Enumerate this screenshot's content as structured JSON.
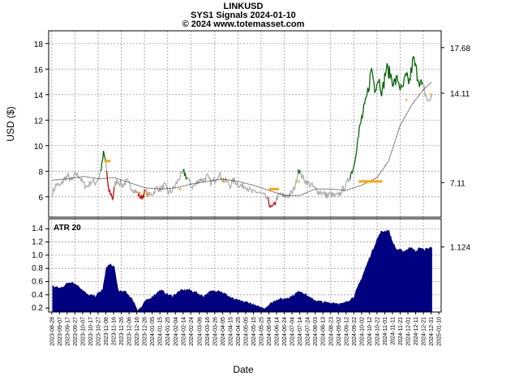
{
  "titles": [
    "LINKUSD",
    "SYS1  Signals 2024-01-10",
    "© 2024 www.totemasset.com"
  ],
  "chart_data": [
    {
      "type": "line",
      "panel": "price",
      "ylabel": "USD ($)",
      "ylim": [
        4.4,
        19.0
      ],
      "yticks": [
        6,
        8,
        10,
        12,
        14,
        16,
        18
      ],
      "right_labels": [
        "17.68",
        "14.11",
        "7.11"
      ],
      "grid": true,
      "price_points": [
        [
          "2023-08-29",
          6.3
        ],
        [
          "2023-09-03",
          7.0
        ],
        [
          "2023-09-08",
          6.8
        ],
        [
          "2023-09-13",
          7.4
        ],
        [
          "2023-09-18",
          7.6
        ],
        [
          "2023-09-23",
          7.2
        ],
        [
          "2023-09-28",
          7.8
        ],
        [
          "2023-10-03",
          7.6
        ],
        [
          "2023-10-08",
          7.0
        ],
        [
          "2023-10-13",
          6.8
        ],
        [
          "2023-10-18",
          7.2
        ],
        [
          "2023-10-23",
          7.1
        ],
        [
          "2023-10-28",
          7.5
        ],
        [
          "2023-11-01",
          8.5
        ],
        [
          "2023-11-03",
          9.4
        ],
        [
          "2023-11-06",
          8.7
        ],
        [
          "2023-11-09",
          6.6
        ],
        [
          "2023-11-12",
          6.3
        ],
        [
          "2023-11-15",
          5.9
        ],
        [
          "2023-11-18",
          7.0
        ],
        [
          "2023-11-21",
          7.3
        ],
        [
          "2023-11-24",
          7.1
        ],
        [
          "2023-11-28",
          6.9
        ],
        [
          "2023-12-03",
          7.2
        ],
        [
          "2023-12-08",
          6.8
        ],
        [
          "2023-12-13",
          6.5
        ],
        [
          "2023-12-18",
          6.2
        ],
        [
          "2023-12-22",
          5.9
        ],
        [
          "2023-12-27",
          6.4
        ],
        [
          "2024-01-01",
          6.1
        ],
        [
          "2024-01-06",
          6.3
        ],
        [
          "2024-01-11",
          6.7
        ],
        [
          "2024-01-16",
          6.6
        ],
        [
          "2024-01-21",
          6.9
        ],
        [
          "2024-01-26",
          6.3
        ],
        [
          "2024-01-31",
          6.5
        ],
        [
          "2024-02-05",
          7.0
        ],
        [
          "2024-02-10",
          7.6
        ],
        [
          "2024-02-15",
          7.9
        ],
        [
          "2024-02-20",
          7.4
        ],
        [
          "2024-02-25",
          6.8
        ],
        [
          "2024-03-01",
          6.9
        ],
        [
          "2024-03-06",
          7.4
        ],
        [
          "2024-03-11",
          7.3
        ],
        [
          "2024-03-16",
          7.6
        ],
        [
          "2024-03-21",
          7.1
        ],
        [
          "2024-03-26",
          7.3
        ],
        [
          "2024-03-31",
          7.8
        ],
        [
          "2024-04-05",
          7.4
        ],
        [
          "2024-04-10",
          7.2
        ],
        [
          "2024-04-15",
          6.9
        ],
        [
          "2024-04-20",
          7.3
        ],
        [
          "2024-04-25",
          7.0
        ],
        [
          "2024-04-30",
          6.8
        ],
        [
          "2024-05-05",
          6.9
        ],
        [
          "2024-05-10",
          6.5
        ],
        [
          "2024-05-15",
          6.3
        ],
        [
          "2024-05-20",
          6.4
        ],
        [
          "2024-05-25",
          6.2
        ],
        [
          "2024-05-30",
          6.0
        ],
        [
          "2024-06-04",
          5.6
        ],
        [
          "2024-06-07",
          5.1
        ],
        [
          "2024-06-10",
          5.2
        ],
        [
          "2024-06-14",
          5.9
        ],
        [
          "2024-06-19",
          6.2
        ],
        [
          "2024-06-24",
          6.0
        ],
        [
          "2024-06-29",
          6.1
        ],
        [
          "2024-07-04",
          6.3
        ],
        [
          "2024-07-09",
          7.0
        ],
        [
          "2024-07-12",
          8.2
        ],
        [
          "2024-07-15",
          7.8
        ],
        [
          "2024-07-19",
          7.4
        ],
        [
          "2024-07-24",
          7.1
        ],
        [
          "2024-07-29",
          6.9
        ],
        [
          "2024-08-03",
          6.6
        ],
        [
          "2024-08-08",
          6.4
        ],
        [
          "2024-08-13",
          6.3
        ],
        [
          "2024-08-18",
          6.1
        ],
        [
          "2024-08-23",
          6.2
        ],
        [
          "2024-08-28",
          6.0
        ],
        [
          "2024-09-02",
          6.1
        ],
        [
          "2024-09-07",
          6.5
        ],
        [
          "2024-09-12",
          6.9
        ],
        [
          "2024-09-17",
          7.6
        ],
        [
          "2024-09-22",
          8.4
        ],
        [
          "2024-09-27",
          10.4
        ],
        [
          "2024-10-02",
          12.1
        ],
        [
          "2024-10-07",
          13.2
        ],
        [
          "2024-10-12",
          14.9
        ],
        [
          "2024-10-15",
          16.1
        ],
        [
          "2024-10-19",
          14.6
        ],
        [
          "2024-10-24",
          15.3
        ],
        [
          "2024-10-29",
          14.2
        ],
        [
          "2024-11-03",
          16.1
        ],
        [
          "2024-11-08",
          15.6
        ],
        [
          "2024-11-13",
          14.9
        ],
        [
          "2024-11-18",
          15.2
        ],
        [
          "2024-11-23",
          14.2
        ],
        [
          "2024-11-28",
          15.3
        ],
        [
          "2024-12-03",
          15.0
        ],
        [
          "2024-12-08",
          16.8
        ],
        [
          "2024-12-13",
          15.6
        ],
        [
          "2024-12-18",
          14.8
        ],
        [
          "2024-12-23",
          14.2
        ],
        [
          "2024-12-28",
          13.3
        ],
        [
          "2025-01-01",
          14.1
        ]
      ],
      "signal_runs": [
        {
          "color": "#006400",
          "from": "2023-10-30",
          "to": "2023-11-06"
        },
        {
          "color": "#cc0000",
          "from": "2023-11-07",
          "to": "2023-11-17"
        },
        {
          "color": "#cc0000",
          "from": "2023-12-18",
          "to": "2023-12-27"
        },
        {
          "color": "#006400",
          "from": "2024-02-14",
          "to": "2024-02-19"
        },
        {
          "color": "#cc0000",
          "from": "2024-06-03",
          "to": "2024-06-13"
        },
        {
          "color": "#006400",
          "from": "2024-07-12",
          "to": "2024-07-15"
        },
        {
          "color": "#006400",
          "from": "2024-09-17",
          "to": "2024-12-20"
        }
      ],
      "stops": [
        {
          "from": "2023-11-04",
          "to": "2023-11-12",
          "value": 8.8
        },
        {
          "from": "2023-12-18",
          "to": "2023-12-21",
          "value": 6.3
        },
        {
          "from": "2023-12-28",
          "to": "2023-12-31",
          "value": 6.2
        },
        {
          "from": "2024-02-09",
          "to": "2024-02-11",
          "value": 6.6
        },
        {
          "from": "2024-04-05",
          "to": "2024-04-08",
          "value": 7.2
        },
        {
          "from": "2024-06-04",
          "to": "2024-06-17",
          "value": 6.6
        },
        {
          "from": "2024-07-12",
          "to": "2024-07-14",
          "value": 7.2
        },
        {
          "from": "2024-09-28",
          "to": "2024-10-29",
          "value": 7.2
        },
        {
          "from": "2024-11-28",
          "to": "2024-11-30",
          "value": 13.6
        },
        {
          "from": "2024-12-30",
          "to": "2025-01-01",
          "value": 14.0
        }
      ],
      "ma_points": [
        [
          "2023-08-29",
          7.3
        ],
        [
          "2023-09-18",
          7.4
        ],
        [
          "2023-10-08",
          7.6
        ],
        [
          "2023-10-28",
          7.4
        ],
        [
          "2023-11-17",
          7.5
        ],
        [
          "2023-12-07",
          7.1
        ],
        [
          "2023-12-27",
          6.7
        ],
        [
          "2024-01-16",
          6.6
        ],
        [
          "2024-02-05",
          6.7
        ],
        [
          "2024-02-25",
          7.0
        ],
        [
          "2024-03-16",
          7.2
        ],
        [
          "2024-04-05",
          7.4
        ],
        [
          "2024-04-25",
          7.2
        ],
        [
          "2024-05-15",
          6.9
        ],
        [
          "2024-06-04",
          6.5
        ],
        [
          "2024-06-24",
          6.1
        ],
        [
          "2024-07-14",
          6.1
        ],
        [
          "2024-08-03",
          6.6
        ],
        [
          "2024-08-23",
          6.6
        ],
        [
          "2024-09-12",
          6.5
        ],
        [
          "2024-10-02",
          6.9
        ],
        [
          "2024-10-22",
          7.5
        ],
        [
          "2024-11-06",
          8.8
        ],
        [
          "2024-11-21",
          11.6
        ],
        [
          "2024-12-06",
          13.2
        ],
        [
          "2024-12-21",
          14.4
        ],
        [
          "2025-01-01",
          15.0
        ]
      ]
    },
    {
      "type": "area",
      "panel": "atr",
      "label": "ATR 20",
      "ylim": [
        0.14,
        1.55
      ],
      "yticks": [
        0.2,
        0.4,
        0.6,
        0.8,
        1.0,
        1.2,
        1.4
      ],
      "right_labels": [
        "1.124"
      ],
      "grid": true,
      "atr_points": [
        [
          "2023-08-29",
          0.53
        ],
        [
          "2023-09-08",
          0.5
        ],
        [
          "2023-09-18",
          0.58
        ],
        [
          "2023-09-23",
          0.6
        ],
        [
          "2023-10-03",
          0.52
        ],
        [
          "2023-10-13",
          0.4
        ],
        [
          "2023-10-23",
          0.38
        ],
        [
          "2023-11-02",
          0.48
        ],
        [
          "2023-11-07",
          0.83
        ],
        [
          "2023-11-12",
          0.86
        ],
        [
          "2023-11-17",
          0.81
        ],
        [
          "2023-11-22",
          0.47
        ],
        [
          "2023-11-27",
          0.44
        ],
        [
          "2023-12-02",
          0.45
        ],
        [
          "2023-12-12",
          0.3
        ],
        [
          "2023-12-17",
          0.17
        ],
        [
          "2023-12-22",
          0.21
        ],
        [
          "2023-12-27",
          0.3
        ],
        [
          "2024-01-06",
          0.38
        ],
        [
          "2024-01-11",
          0.43
        ],
        [
          "2024-01-16",
          0.47
        ],
        [
          "2024-01-26",
          0.4
        ],
        [
          "2024-01-31",
          0.38
        ],
        [
          "2024-02-10",
          0.46
        ],
        [
          "2024-02-20",
          0.48
        ],
        [
          "2024-03-01",
          0.44
        ],
        [
          "2024-03-11",
          0.38
        ],
        [
          "2024-03-21",
          0.45
        ],
        [
          "2024-03-31",
          0.47
        ],
        [
          "2024-04-10",
          0.4
        ],
        [
          "2024-04-20",
          0.33
        ],
        [
          "2024-04-30",
          0.3
        ],
        [
          "2024-05-10",
          0.28
        ],
        [
          "2024-05-20",
          0.22
        ],
        [
          "2024-05-30",
          0.2
        ],
        [
          "2024-06-04",
          0.25
        ],
        [
          "2024-06-14",
          0.33
        ],
        [
          "2024-06-24",
          0.34
        ],
        [
          "2024-07-04",
          0.38
        ],
        [
          "2024-07-14",
          0.46
        ],
        [
          "2024-07-19",
          0.43
        ],
        [
          "2024-07-29",
          0.34
        ],
        [
          "2024-08-08",
          0.3
        ],
        [
          "2024-08-18",
          0.28
        ],
        [
          "2024-08-28",
          0.28
        ],
        [
          "2024-09-07",
          0.26
        ],
        [
          "2024-09-12",
          0.29
        ],
        [
          "2024-09-22",
          0.37
        ],
        [
          "2024-10-02",
          0.65
        ],
        [
          "2024-10-12",
          0.95
        ],
        [
          "2024-10-22",
          1.24
        ],
        [
          "2024-10-27",
          1.35
        ],
        [
          "2024-11-06",
          1.38
        ],
        [
          "2024-11-11",
          1.2
        ],
        [
          "2024-11-16",
          1.09
        ],
        [
          "2024-11-26",
          1.06
        ],
        [
          "2024-12-06",
          1.13
        ],
        [
          "2024-12-11",
          1.04
        ],
        [
          "2024-12-16",
          1.12
        ],
        [
          "2024-12-21",
          1.08
        ],
        [
          "2025-01-01",
          1.12
        ]
      ]
    }
  ],
  "x_axis": {
    "xlabel": "Date",
    "tick_labels": [
      "2023-08-28",
      "2023-09-07",
      "2023-09-17",
      "2023-09-27",
      "2023-10-07",
      "2023-10-17",
      "2023-10-27",
      "2023-11-06",
      "2023-11-16",
      "2023-11-26",
      "2023-12-06",
      "2023-12-16",
      "2023-12-26",
      "2024-01-05",
      "2024-01-15",
      "2024-01-25",
      "2024-02-04",
      "2024-02-14",
      "2024-02-24",
      "2024-03-06",
      "2024-03-16",
      "2024-03-26",
      "2024-04-05",
      "2024-04-15",
      "2024-04-25",
      "2024-05-05",
      "2024-05-15",
      "2024-05-25",
      "2024-06-04",
      "2024-06-14",
      "2024-06-24",
      "2024-07-04",
      "2024-07-14",
      "2024-07-24",
      "2024-08-03",
      "2024-08-13",
      "2024-08-23",
      "2024-09-02",
      "2024-09-12",
      "2024-09-22",
      "2024-10-02",
      "2024-10-12",
      "2024-10-22",
      "2024-11-01",
      "2024-11-11",
      "2024-11-21",
      "2024-12-01",
      "2024-12-11",
      "2024-12-21",
      "2024-12-31",
      "2025-01-10"
    ],
    "range": [
      "2023-08-24",
      "2025-01-13"
    ]
  },
  "colors": {
    "price": "#aaaaaa",
    "ma": "#000000",
    "buy": "#006400",
    "sell": "#cc0000",
    "stop": "#ffa500",
    "atr_fill": "#000080",
    "grid": "#9a9a9a",
    "panel_bg": "#ffffff"
  }
}
